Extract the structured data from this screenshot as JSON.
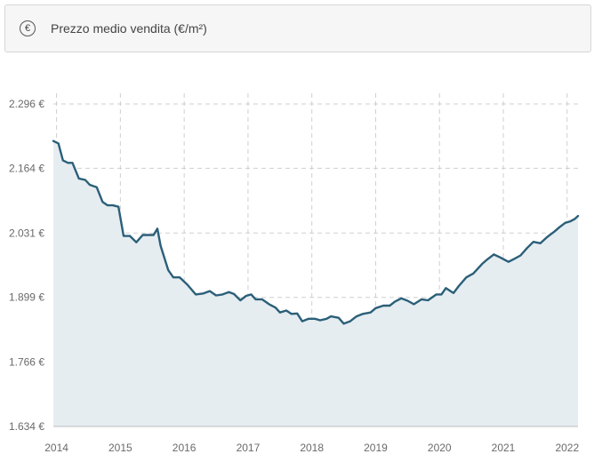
{
  "header": {
    "icon": "euro-icon",
    "icon_glyph": "€",
    "title": "Prezzo medio vendita (€/m²)"
  },
  "colors": {
    "line": "#2b5f78",
    "area": "#e5edf1",
    "grid": "#cfcfcf",
    "text": "#6a6a6a"
  },
  "chart_data": {
    "type": "area",
    "title": "",
    "xlabel": "",
    "ylabel": "",
    "grid": true,
    "y_ticks": [
      1634,
      1766,
      1899,
      2031,
      2164,
      2296
    ],
    "y_tick_labels": [
      "1.634 €",
      "1.766 €",
      "1.899 €",
      "2.031 €",
      "2.164 €",
      "2.296 €"
    ],
    "ylim": [
      1634,
      2296
    ],
    "x_ticks": [
      2014,
      2015,
      2016,
      2017,
      2018,
      2019,
      2020,
      2021,
      2022
    ],
    "x_tick_labels": [
      "2014",
      "2015",
      "2016",
      "2017",
      "2018",
      "2019",
      "2020",
      "2021",
      "2022"
    ],
    "xlim": [
      2013.95,
      2022.17
    ],
    "series": [
      {
        "x": [
          2013.95,
          2014.03,
          2014.1,
          2014.18,
          2014.25,
          2014.35,
          2014.45,
          2014.52,
          2014.63,
          2014.72,
          2014.8,
          2014.88,
          2014.97,
          2015.05,
          2015.15,
          2015.25,
          2015.35,
          2015.52,
          2015.58,
          2015.63,
          2015.75,
          2015.83,
          2015.93,
          2016.05,
          2016.18,
          2016.3,
          2016.4,
          2016.5,
          2016.6,
          2016.7,
          2016.78,
          2016.88,
          2016.97,
          2017.05,
          2017.12,
          2017.22,
          2017.33,
          2017.43,
          2017.5,
          2017.6,
          2017.68,
          2017.77,
          2017.85,
          2017.95,
          2018.05,
          2018.13,
          2018.23,
          2018.3,
          2018.42,
          2018.5,
          2018.6,
          2018.7,
          2018.8,
          2018.92,
          2019.0,
          2019.12,
          2019.22,
          2019.3,
          2019.4,
          2019.5,
          2019.6,
          2019.72,
          2019.82,
          2019.95,
          2020.03,
          2020.1,
          2020.22,
          2020.3,
          2020.42,
          2020.53,
          2020.67,
          2020.75,
          2020.85,
          2020.95,
          2021.08,
          2021.17,
          2021.27,
          2021.37,
          2021.47,
          2021.58,
          2021.68,
          2021.8,
          2021.88,
          2021.97,
          2022.05,
          2022.12,
          2022.17
        ],
        "y": [
          2220,
          2215,
          2180,
          2175,
          2175,
          2143,
          2140,
          2130,
          2125,
          2095,
          2088,
          2088,
          2085,
          2025,
          2025,
          2012,
          2027,
          2027,
          2040,
          2005,
          1955,
          1940,
          1940,
          1925,
          1905,
          1907,
          1912,
          1903,
          1905,
          1910,
          1906,
          1893,
          1902,
          1905,
          1895,
          1895,
          1885,
          1878,
          1868,
          1872,
          1865,
          1866,
          1850,
          1855,
          1855,
          1852,
          1855,
          1860,
          1857,
          1845,
          1850,
          1860,
          1865,
          1868,
          1877,
          1882,
          1882,
          1890,
          1897,
          1892,
          1885,
          1895,
          1893,
          1905,
          1905,
          1918,
          1908,
          1922,
          1940,
          1948,
          1968,
          1977,
          1987,
          1981,
          1972,
          1978,
          1985,
          2000,
          2013,
          2010,
          2022,
          2034,
          2043,
          2052,
          2055,
          2060,
          2066
        ]
      }
    ]
  }
}
